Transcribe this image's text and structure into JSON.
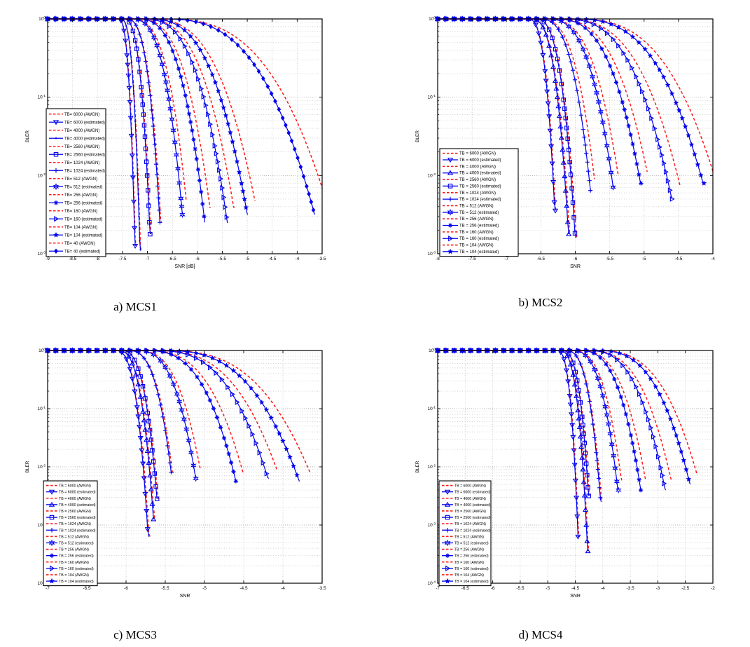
{
  "figure": {
    "background": "#ffffff",
    "captions": [
      "a) MCS1",
      "b) MCS2",
      "c) MCS3",
      "d) MCS4"
    ]
  },
  "chart_data": [
    {
      "id": "mcs1",
      "type": "line",
      "caption": "a) MCS1",
      "xlabel": "SNR [dB]",
      "ylabel": "BLER",
      "xlim": [
        -9,
        -3.5
      ],
      "x_tick_step": 0.5,
      "x_tick_labels": [
        "-9",
        "-8.5",
        "-8",
        "-7.5",
        "-7",
        "-6.5",
        "-6",
        "-5.5",
        "-5",
        "-4.5",
        "-4",
        "-3.5"
      ],
      "y_scale": "log",
      "ylim": [
        0.001,
        1
      ],
      "y_decades": 3,
      "y_tick_labels": [
        "10^0",
        "10^-1",
        "10^-2",
        "10^-3"
      ],
      "grid": true,
      "legend_position": "southwest-inside",
      "colors": {
        "estimated": "#0000ee",
        "awgn": "#ff1a1a"
      },
      "curve_model": "log10_bler = -steepness*(snr-knee_snr)^3 for snr>knee_snr, else bler=1",
      "series": [
        {
          "tb": 6000,
          "marker": "triangle-down",
          "knee_snr": -7.6,
          "steepness": 68,
          "end_log10_bler": -2.9
        },
        {
          "tb": 4000,
          "marker": "point",
          "knee_snr": -7.55,
          "steepness": 46,
          "end_log10_bler": -2.95
        },
        {
          "tb": 2560,
          "marker": "square",
          "knee_snr": -7.5,
          "steepness": 16.5,
          "end_log10_bler": -2.75
        },
        {
          "tb": 1024,
          "marker": "plus",
          "knee_snr": -7.45,
          "steepness": 7.6,
          "end_log10_bler": -2.6
        },
        {
          "tb": 512,
          "marker": "hexagram",
          "knee_snr": -7.35,
          "steepness": 2.16,
          "end_log10_bler": -2.5
        },
        {
          "tb": 256,
          "marker": "asterisk",
          "knee_snr": -7.25,
          "steepness": 0.95,
          "end_log10_bler": -2.6
        },
        {
          "tb": 160,
          "marker": "triangle-right",
          "knee_snr": -7.15,
          "steepness": 0.485,
          "end_log10_bler": -2.6
        },
        {
          "tb": 104,
          "marker": "star5",
          "knee_snr": -7.05,
          "steepness": 0.29,
          "end_log10_bler": -2.5
        },
        {
          "tb": 40,
          "marker": "diamond",
          "knee_snr": -6.8,
          "steepness": 0.08,
          "end_log10_bler": -2.5
        }
      ],
      "legend": [
        {
          "label": "TB= 6000 (AWGN)",
          "style": "awgn"
        },
        {
          "label": "TB= 6000 (estimated)",
          "style": "estimated",
          "marker": "triangle-down"
        },
        {
          "label": "TB= 4000 (AWGN)",
          "style": "awgn"
        },
        {
          "label": "TB= 4000 (estimated)",
          "style": "estimated",
          "marker": "point"
        },
        {
          "label": "TB= 2560 (AWGN)",
          "style": "awgn"
        },
        {
          "label": "TB= 2560 (estimated)",
          "style": "estimated",
          "marker": "square"
        },
        {
          "label": "TB= 1024 (AWGN)",
          "style": "awgn"
        },
        {
          "label": "TB= 1024 (estimated)",
          "style": "estimated",
          "marker": "plus"
        },
        {
          "label": "TB= 512 (AWGN)",
          "style": "awgn"
        },
        {
          "label": "TB= 512 (estimated)",
          "style": "estimated",
          "marker": "hexagram"
        },
        {
          "label": "TB= 256 (AWGN)",
          "style": "awgn"
        },
        {
          "label": "TB= 256 (estimated)",
          "style": "estimated",
          "marker": "asterisk"
        },
        {
          "label": "TB= 160 (AWGN)",
          "style": "awgn"
        },
        {
          "label": "TB= 160 (estimated)",
          "style": "estimated",
          "marker": "triangle-right"
        },
        {
          "label": "TB= 104 (AWGN)",
          "style": "awgn"
        },
        {
          "label": "TB= 104 (estimated)",
          "style": "estimated",
          "marker": "star5"
        },
        {
          "label": "TB= 40 (AWGN)",
          "style": "awgn"
        },
        {
          "label": "TB= 40 (estimated)",
          "style": "estimated",
          "marker": "diamond"
        }
      ]
    },
    {
      "id": "mcs2",
      "type": "line",
      "caption": "b) MCS2",
      "xlabel": "SNR",
      "ylabel": "BLER",
      "xlim": [
        -8,
        -4
      ],
      "x_tick_step": 0.5,
      "x_tick_labels": [
        "-8",
        "-7.5",
        "-7",
        "-6.5",
        "-6",
        "-5.5",
        "-5",
        "-4.5",
        "-4"
      ],
      "y_scale": "log",
      "ylim": [
        0.001,
        1
      ],
      "y_decades": 3,
      "y_tick_labels": [
        "10^0",
        "10^-1",
        "10^-2",
        "10^-3"
      ],
      "grid": true,
      "legend_position": "southwest-inside",
      "colors": {
        "estimated": "#0000ee",
        "awgn": "#ff1a1a"
      },
      "curve_model": "log10_bler = -steepness*(snr-knee_snr)^3 for snr>knee_snr, else bler=1",
      "series": [
        {
          "tb": 6000,
          "marker": "triangle-down",
          "knee_snr": -6.7,
          "steepness": 38,
          "end_log10_bler": -2.45
        },
        {
          "tb": 4000,
          "marker": "triangle-up",
          "knee_snr": -6.66,
          "steepness": 15.6,
          "end_log10_bler": -2.75
        },
        {
          "tb": 2560,
          "marker": "square",
          "knee_snr": -6.6,
          "steepness": 13,
          "end_log10_bler": -2.8
        },
        {
          "tb": 1024,
          "marker": "plus",
          "knee_snr": -6.55,
          "steepness": 4.8,
          "end_log10_bler": -2.2
        },
        {
          "tb": 512,
          "marker": "hexagram",
          "knee_snr": -6.45,
          "steepness": 2.15,
          "end_log10_bler": -2.15
        },
        {
          "tb": 256,
          "marker": "asterisk",
          "knee_snr": -6.35,
          "steepness": 0.96,
          "end_log10_bler": -2.1
        },
        {
          "tb": 160,
          "marker": "triangle-right",
          "knee_snr": -6.25,
          "steepness": 0.51,
          "end_log10_bler": -2.3
        },
        {
          "tb": 104,
          "marker": "star5",
          "knee_snr": -6.1,
          "steepness": 0.28,
          "end_log10_bler": -2.1
        }
      ],
      "legend": [
        {
          "label": "TB = 6000 (AWGN)",
          "style": "awgn"
        },
        {
          "label": "TB = 6000 (estimated)",
          "style": "estimated",
          "marker": "triangle-down"
        },
        {
          "label": "TB = 4000 (AWGN)",
          "style": "awgn"
        },
        {
          "label": "TB = 4000 (estimated)",
          "style": "estimated",
          "marker": "triangle-up"
        },
        {
          "label": "TB = 2560 (AWGN)",
          "style": "awgn"
        },
        {
          "label": "TB = 2560 (estimated)",
          "style": "estimated",
          "marker": "square"
        },
        {
          "label": "TB = 1024 (AWGN)",
          "style": "awgn"
        },
        {
          "label": "TB = 1024 (estimated)",
          "style": "estimated",
          "marker": "plus"
        },
        {
          "label": "TB = 512 (AWGN)",
          "style": "awgn"
        },
        {
          "label": "TB = 512 (estimated)",
          "style": "estimated",
          "marker": "hexagram"
        },
        {
          "label": "TB = 256 (AWGN)",
          "style": "awgn"
        },
        {
          "label": "TB = 256 (estimated)",
          "style": "estimated",
          "marker": "asterisk"
        },
        {
          "label": "TB = 160 (AWGN)",
          "style": "awgn"
        },
        {
          "label": "TB = 160 (estimated)",
          "style": "estimated",
          "marker": "triangle-right"
        },
        {
          "label": "TB = 104 (AWGN)",
          "style": "awgn"
        },
        {
          "label": "TB = 104 (estimated)",
          "style": "estimated",
          "marker": "star5"
        }
      ]
    },
    {
      "id": "mcs3",
      "type": "line",
      "caption": "c) MCS3",
      "xlabel": "SNR",
      "ylabel": "BLER",
      "xlim": [
        -7,
        -3.5
      ],
      "x_tick_step": 0.5,
      "x_tick_labels": [
        "-7",
        "-6.5",
        "-6",
        "-5.5",
        "-5",
        "-4.5",
        "-4",
        "-3.5"
      ],
      "y_scale": "log",
      "ylim": [
        0.0001,
        1
      ],
      "y_decades": 4,
      "y_tick_labels": [
        "10^0",
        "10^-1",
        "10^-2",
        "10^-3",
        "10^-4"
      ],
      "grid": true,
      "legend_position": "southwest-inside",
      "colors": {
        "estimated": "#0000ee",
        "awgn": "#ff1a1a"
      },
      "curve_model": "log10_bler = -steepness*(snr-knee_snr)^3 for snr>knee_snr, else bler=1",
      "series": [
        {
          "tb": 6000,
          "marker": "triangle-down",
          "knee_snr": -6.15,
          "steepness": 40,
          "end_log10_bler": -3.2
        },
        {
          "tb": 4000,
          "marker": "triangle-up",
          "knee_snr": -6.12,
          "steepness": 28,
          "end_log10_bler": -2.9
        },
        {
          "tb": 2560,
          "marker": "square",
          "knee_snr": -6.08,
          "steepness": 24,
          "end_log10_bler": -2.55
        },
        {
          "tb": 1024,
          "marker": "plus",
          "knee_snr": -6.0,
          "steepness": 11,
          "end_log10_bler": -2.1
        },
        {
          "tb": 512,
          "marker": "hexagram",
          "knee_snr": -5.9,
          "steepness": 4.5,
          "end_log10_bler": -2.2
        },
        {
          "tb": 256,
          "marker": "asterisk",
          "knee_snr": -5.8,
          "steepness": 1.3,
          "end_log10_bler": -2.25
        },
        {
          "tb": 160,
          "marker": "triangle-right",
          "knee_snr": -5.7,
          "steepness": 0.64,
          "end_log10_bler": -2.2
        },
        {
          "tb": 104,
          "marker": "star5",
          "knee_snr": -5.6,
          "steepness": 0.38,
          "end_log10_bler": -2.25
        }
      ],
      "legend": [
        {
          "label": "TB = 6000 (AWGN)",
          "style": "awgn"
        },
        {
          "label": "TB = 6000 (estimated)",
          "style": "estimated",
          "marker": "triangle-down"
        },
        {
          "label": "TB = 4000 (AWGN)",
          "style": "awgn"
        },
        {
          "label": "TB = 4000 (estimated)",
          "style": "estimated",
          "marker": "triangle-up"
        },
        {
          "label": "TB = 2560 (AWGN)",
          "style": "awgn"
        },
        {
          "label": "TB = 2560 (estimated)",
          "style": "estimated",
          "marker": "square"
        },
        {
          "label": "TB = 1024 (AWGN)",
          "style": "awgn"
        },
        {
          "label": "TB = 1024 (estimated)",
          "style": "estimated",
          "marker": "plus"
        },
        {
          "label": "TB = 512 (AWGN)",
          "style": "awgn"
        },
        {
          "label": "TB = 512 (estimated)",
          "style": "estimated",
          "marker": "hexagram"
        },
        {
          "label": "TB = 256 (AWGN)",
          "style": "awgn"
        },
        {
          "label": "TB = 256 (estimated)",
          "style": "estimated",
          "marker": "asterisk"
        },
        {
          "label": "TB = 160 (AWGN)",
          "style": "awgn"
        },
        {
          "label": "TB = 160 (estimated)",
          "style": "estimated",
          "marker": "triangle-right"
        },
        {
          "label": "TB = 104 (AWGN)",
          "style": "awgn"
        },
        {
          "label": "TB = 104 (estimated)",
          "style": "estimated",
          "marker": "star5"
        }
      ]
    },
    {
      "id": "mcs4",
      "type": "line",
      "caption": "d) MCS4",
      "xlabel": "SNR",
      "ylabel": "BLER",
      "xlim": [
        -7,
        -2
      ],
      "x_tick_step": 0.5,
      "x_tick_labels": [
        "-7",
        "-6.5",
        "-6",
        "-5.5",
        "-5",
        "-4.5",
        "-4",
        "-3.5",
        "-3",
        "-2.5",
        "-2"
      ],
      "y_scale": "log",
      "ylim": [
        0.0001,
        1
      ],
      "y_decades": 4,
      "y_tick_labels": [
        "10^0",
        "10^-1",
        "10^-2",
        "10^-3",
        "10^-4"
      ],
      "grid": true,
      "legend_position": "southwest-inside",
      "colors": {
        "estimated": "#0000ee",
        "awgn": "#ff1a1a"
      },
      "curve_model": "log10_bler = -steepness*(snr-knee_snr)^3 for snr>knee_snr, else bler=1",
      "series": [
        {
          "tb": 6000,
          "marker": "triangle-down",
          "knee_snr": -4.85,
          "steepness": 50,
          "end_log10_bler": -3.2
        },
        {
          "tb": 4000,
          "marker": "triangle-up",
          "knee_snr": -4.8,
          "steepness": 24,
          "end_log10_bler": -3.45
        },
        {
          "tb": 2560,
          "marker": "square",
          "knee_snr": -4.76,
          "steepness": 20,
          "end_log10_bler": -2.5
        },
        {
          "tb": 1024,
          "marker": "plus",
          "knee_snr": -4.7,
          "steepness": 9,
          "end_log10_bler": -2.6
        },
        {
          "tb": 512,
          "marker": "hexagram",
          "knee_snr": -4.6,
          "steepness": 3.6,
          "end_log10_bler": -2.4
        },
        {
          "tb": 256,
          "marker": "asterisk",
          "knee_snr": -4.48,
          "steepness": 1.5,
          "end_log10_bler": -2.4
        },
        {
          "tb": 160,
          "marker": "triangle-right",
          "knee_snr": -4.34,
          "steepness": 0.75,
          "end_log10_bler": -2.4
        },
        {
          "tb": 104,
          "marker": "star5",
          "knee_snr": -4.18,
          "steepness": 0.42,
          "end_log10_bler": -2.3
        }
      ],
      "legend": [
        {
          "label": "TB = 6000 (AWGN)",
          "style": "awgn"
        },
        {
          "label": "TB = 6000 (estimated)",
          "style": "estimated",
          "marker": "triangle-down"
        },
        {
          "label": "TB = 4000 (AWGN)",
          "style": "awgn"
        },
        {
          "label": "TB = 4000 (estimated)",
          "style": "estimated",
          "marker": "triangle-up"
        },
        {
          "label": "TB = 2560 (AWGN)",
          "style": "awgn"
        },
        {
          "label": "TB = 2560 (estimated)",
          "style": "estimated",
          "marker": "square"
        },
        {
          "label": "TB = 1024 (AWGN)",
          "style": "awgn"
        },
        {
          "label": "TB = 1024 (estimated)",
          "style": "estimated",
          "marker": "plus"
        },
        {
          "label": "TB = 512 (AWGN)",
          "style": "awgn"
        },
        {
          "label": "TB = 512 (estimated)",
          "style": "estimated",
          "marker": "hexagram"
        },
        {
          "label": "TB = 256 (AWGN)",
          "style": "awgn"
        },
        {
          "label": "TB = 256 (estimated)",
          "style": "estimated",
          "marker": "asterisk"
        },
        {
          "label": "TB = 160 (AWGN)",
          "style": "awgn"
        },
        {
          "label": "TB = 160 (estimated)",
          "style": "estimated",
          "marker": "triangle-right"
        },
        {
          "label": "TB = 104 (AWGN)",
          "style": "awgn"
        },
        {
          "label": "TB = 104 (estimated)",
          "style": "estimated",
          "marker": "star5"
        }
      ]
    }
  ]
}
